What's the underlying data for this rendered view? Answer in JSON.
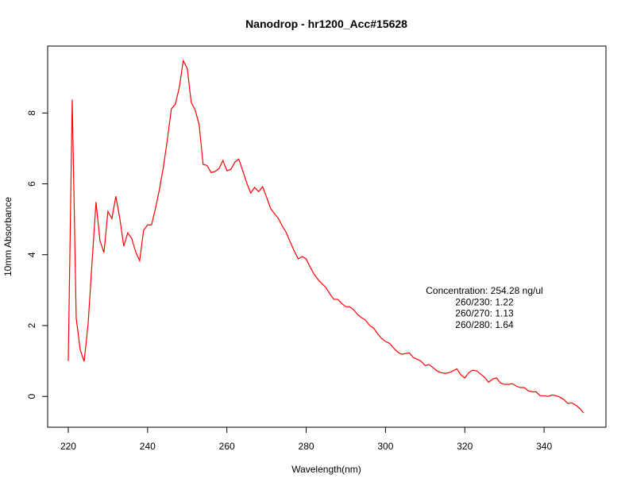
{
  "chart_data": {
    "type": "line",
    "title": "Nanodrop - hr1200_Acc#15628",
    "x_label": "Wavelength(nm)",
    "y_label": "10mm Absorbance",
    "x": [
      220,
      221,
      222,
      223,
      224,
      225,
      226,
      227,
      228,
      229,
      230,
      231,
      232,
      233,
      234,
      235,
      236,
      237,
      238,
      239,
      240,
      241,
      242,
      243,
      244,
      245,
      246,
      247,
      248,
      249,
      250,
      251,
      252,
      253,
      254,
      255,
      256,
      257,
      258,
      259,
      260,
      261,
      262,
      263,
      264,
      265,
      266,
      267,
      268,
      269,
      270,
      271,
      272,
      273,
      274,
      275,
      276,
      277,
      278,
      279,
      280,
      281,
      282,
      283,
      284,
      285,
      286,
      287,
      288,
      289,
      290,
      291,
      292,
      293,
      294,
      295,
      296,
      297,
      298,
      299,
      300,
      301,
      302,
      303,
      304,
      305,
      306,
      307,
      308,
      309,
      310,
      311,
      312,
      313,
      314,
      315,
      316,
      317,
      318,
      319,
      320,
      321,
      322,
      323,
      324,
      325,
      326,
      327,
      328,
      329,
      330,
      331,
      332,
      333,
      334,
      335,
      336,
      337,
      338,
      339,
      340,
      341,
      342,
      343,
      344,
      345,
      346,
      347,
      348,
      349,
      350
    ],
    "series": [
      {
        "color": "#ff0000",
        "values": [
          1.0,
          8.38,
          2.22,
          1.32,
          0.99,
          2.04,
          3.79,
          5.49,
          4.39,
          4.06,
          5.22,
          5.02,
          5.65,
          5.02,
          4.24,
          4.62,
          4.46,
          4.08,
          3.83,
          4.69,
          4.84,
          4.84,
          5.31,
          5.85,
          6.48,
          7.26,
          8.12,
          8.25,
          8.72,
          9.48,
          9.26,
          8.3,
          8.09,
          7.67,
          6.55,
          6.52,
          6.32,
          6.35,
          6.43,
          6.66,
          6.37,
          6.41,
          6.61,
          6.7,
          6.37,
          6.03,
          5.74,
          5.9,
          5.78,
          5.92,
          5.63,
          5.31,
          5.16,
          5.02,
          4.8,
          4.62,
          4.35,
          4.1,
          3.88,
          3.95,
          3.88,
          3.65,
          3.45,
          3.3,
          3.18,
          3.07,
          2.89,
          2.74,
          2.74,
          2.62,
          2.53,
          2.53,
          2.44,
          2.31,
          2.22,
          2.15,
          2.0,
          1.93,
          1.77,
          1.64,
          1.55,
          1.5,
          1.37,
          1.26,
          1.19,
          1.21,
          1.23,
          1.1,
          1.05,
          0.99,
          0.87,
          0.9,
          0.81,
          0.72,
          0.67,
          0.65,
          0.67,
          0.72,
          0.78,
          0.61,
          0.52,
          0.67,
          0.74,
          0.72,
          0.63,
          0.54,
          0.4,
          0.49,
          0.52,
          0.38,
          0.34,
          0.34,
          0.36,
          0.29,
          0.25,
          0.25,
          0.16,
          0.13,
          0.13,
          0.02,
          0.02,
          0,
          0.04,
          0.02,
          -0.02,
          -0.09,
          -0.2,
          -0.18,
          -0.25,
          -0.34,
          -0.47
        ]
      }
    ],
    "xlim": [
      214.8,
      355.6
    ],
    "ylim": [
      -0.87,
      9.89
    ],
    "xticks": [
      220,
      240,
      260,
      280,
      300,
      320,
      340
    ],
    "yticks": [
      0,
      2,
      4,
      6,
      8
    ],
    "annotations": [
      "Concentration: 254.28 ng/ul",
      "260/230: 1.22",
      "260/270: 1.13",
      "260/280: 1.64"
    ]
  }
}
